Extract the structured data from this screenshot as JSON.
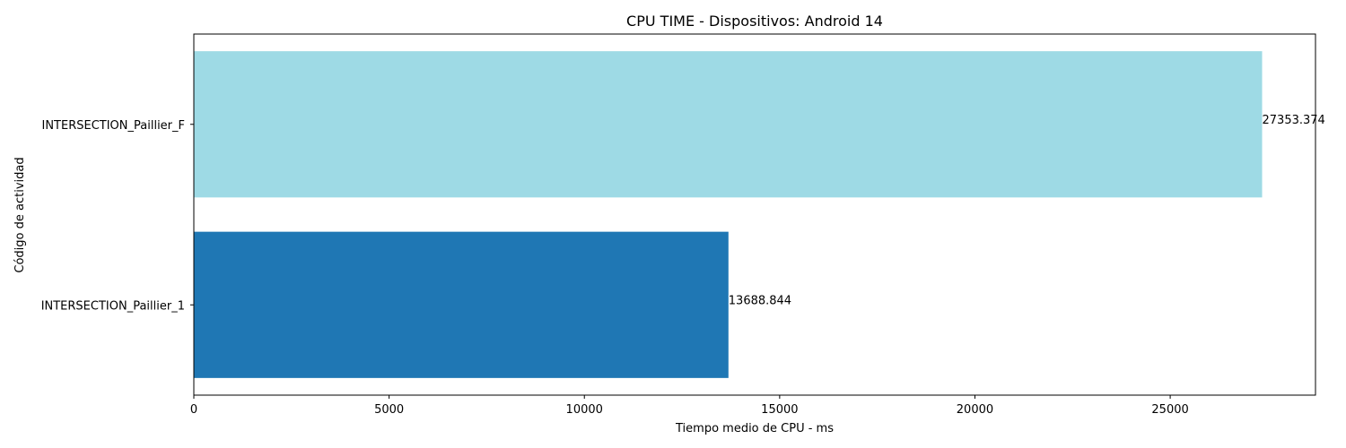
{
  "chart_data": {
    "type": "bar",
    "orientation": "horizontal",
    "title": "CPU TIME - Dispositivos: Android 14",
    "xlabel": "Tiempo medio de CPU - ms",
    "ylabel": "Código de actividad",
    "categories": [
      "INTERSECTION_Paillier_1",
      "INTERSECTION_Paillier_F"
    ],
    "values": [
      13688.844,
      27353.374
    ],
    "value_labels": [
      "13688.844",
      "27353.374"
    ],
    "colors": [
      "#1f77b4",
      "#9edae5"
    ],
    "xlim": [
      0,
      28720
    ],
    "xticks": [
      0,
      5000,
      10000,
      15000,
      20000,
      25000
    ],
    "xtick_labels": [
      "0",
      "5000",
      "10000",
      "15000",
      "20000",
      "25000"
    ],
    "grid": false,
    "legend": "none"
  }
}
